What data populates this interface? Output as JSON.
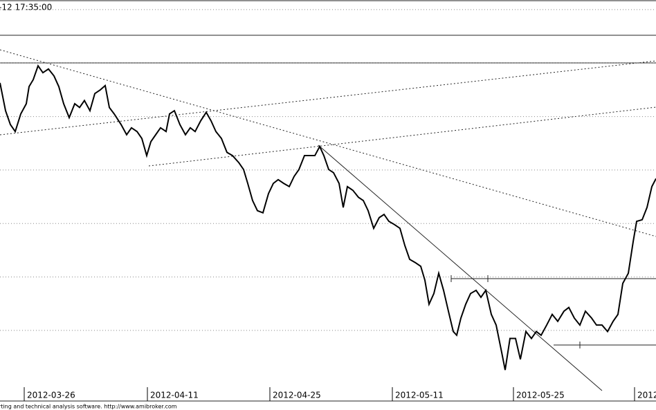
{
  "chart_data": {
    "type": "line",
    "title": "-12 17:35:00",
    "footer": "rting and technical analysis software. http://www.amibroker.com",
    "xlim": [
      0,
      948
    ],
    "xticks": [
      {
        "value": 35,
        "label": "2012-03-26"
      },
      {
        "value": 213,
        "label": "2012-04-11"
      },
      {
        "value": 390,
        "label": "2012-04-25"
      },
      {
        "value": 567,
        "label": "2012-05-11"
      },
      {
        "value": 742,
        "label": "2012-05-25"
      },
      {
        "value": 917,
        "label": "2012"
      }
    ],
    "ylim": [
      -0.32,
      7.18
    ],
    "yticks": [
      1,
      2,
      3,
      4,
      5,
      6,
      7
    ],
    "grid": true,
    "x": [
      0,
      8,
      15,
      22,
      30,
      38,
      42,
      48,
      55,
      62,
      70,
      78,
      85,
      92,
      100,
      108,
      115,
      122,
      130,
      137,
      145,
      152,
      158,
      165,
      175,
      183,
      190,
      198,
      205,
      212,
      218,
      225,
      232,
      240,
      245,
      252,
      260,
      268,
      275,
      282,
      290,
      298,
      305,
      312,
      320,
      328,
      336,
      345,
      352,
      358,
      365,
      372,
      380,
      388,
      395,
      402,
      410,
      418,
      425,
      432,
      440,
      447,
      455,
      462,
      468,
      475,
      482,
      490,
      496,
      502,
      510,
      518,
      525,
      532,
      540,
      548,
      555,
      562,
      570,
      578,
      585,
      592,
      600,
      608,
      614,
      620,
      627,
      634,
      641,
      648,
      655,
      660,
      666,
      673,
      680,
      688,
      695,
      702,
      710,
      717,
      725,
      730,
      737,
      745,
      752,
      760,
      768,
      775,
      782,
      790,
      798,
      806,
      815,
      822,
      830,
      838,
      846,
      855,
      862,
      870,
      878,
      886,
      893,
      900,
      908,
      915,
      920,
      928,
      935,
      942,
      948
    ],
    "series": [
      {
        "color": "#000000",
        "values": [
          5.63,
          5.11,
          4.85,
          4.72,
          5.05,
          5.24,
          5.56,
          5.69,
          5.95,
          5.82,
          5.89,
          5.76,
          5.56,
          5.24,
          4.98,
          5.24,
          5.17,
          5.3,
          5.11,
          5.43,
          5.5,
          5.58,
          5.17,
          5.05,
          4.85,
          4.66,
          4.79,
          4.72,
          4.59,
          4.27,
          4.53,
          4.66,
          4.79,
          4.72,
          5.05,
          5.11,
          4.85,
          4.66,
          4.79,
          4.72,
          4.92,
          5.08,
          4.92,
          4.72,
          4.59,
          4.33,
          4.27,
          4.14,
          4.01,
          3.75,
          3.43,
          3.24,
          3.2,
          3.56,
          3.75,
          3.82,
          3.75,
          3.69,
          3.88,
          4.01,
          4.27,
          4.27,
          4.27,
          4.44,
          4.27,
          4.01,
          3.95,
          3.75,
          3.3,
          3.69,
          3.62,
          3.49,
          3.43,
          3.24,
          2.91,
          3.11,
          3.17,
          3.04,
          2.98,
          2.91,
          2.59,
          2.33,
          2.27,
          2.2,
          1.94,
          1.49,
          1.69,
          2.07,
          1.75,
          1.36,
          0.98,
          0.91,
          1.23,
          1.49,
          1.69,
          1.75,
          1.62,
          1.75,
          1.3,
          1.1,
          0.59,
          0.26,
          0.85,
          0.85,
          0.46,
          0.98,
          0.85,
          0.98,
          0.91,
          1.1,
          1.3,
          1.17,
          1.36,
          1.43,
          1.23,
          1.1,
          1.36,
          1.23,
          1.1,
          1.1,
          0.98,
          1.17,
          1.3,
          1.88,
          2.07,
          2.66,
          3.04,
          3.07,
          3.3,
          3.69,
          3.84
        ]
      }
    ]
  }
}
